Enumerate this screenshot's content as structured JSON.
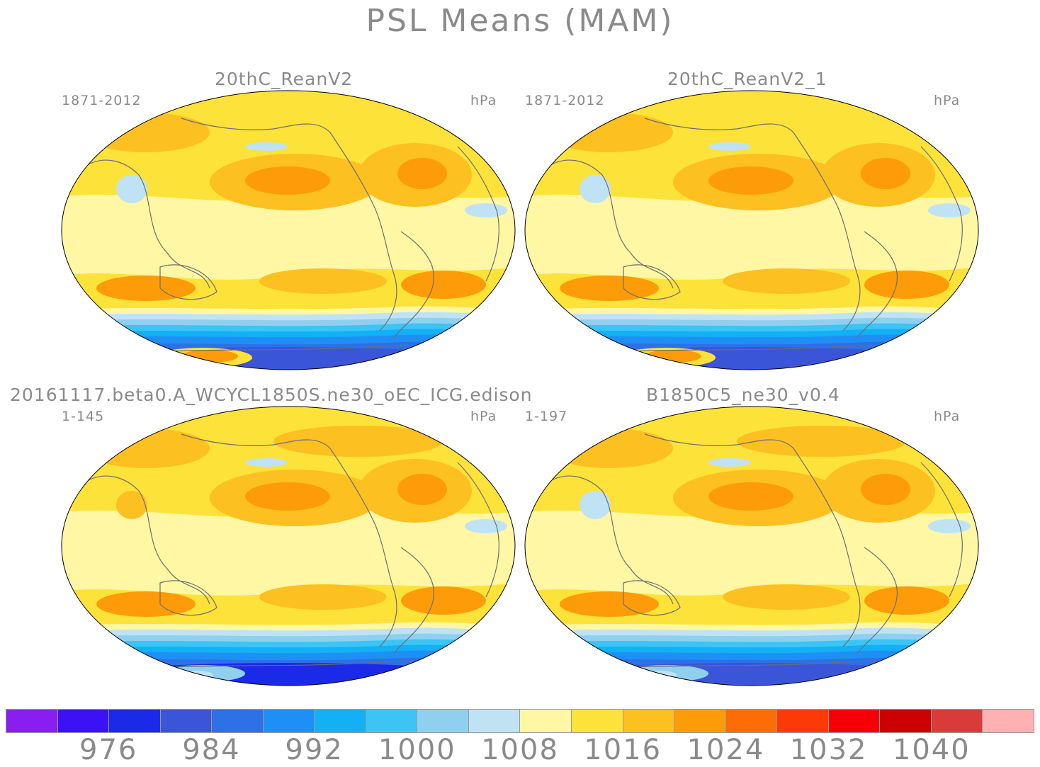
{
  "title": "PSL Means (MAM)",
  "panels": [
    {
      "title": "20thC_ReanV2",
      "years": "1871-2012",
      "units": "hPa",
      "variant": "obs"
    },
    {
      "title": "20thC_ReanV2_1",
      "years": "1871-2012",
      "units": "hPa",
      "variant": "obs"
    },
    {
      "title": "20161117.beta0.A_WCYCL1850S.ne30_oEC_ICG.edison",
      "years": "1-145",
      "units": "hPa",
      "variant": "model1"
    },
    {
      "title": "B1850C5_ne30_v0.4",
      "years": "1-197",
      "units": "hPa",
      "variant": "model2"
    }
  ],
  "colorbar": {
    "colors": [
      "#8a1df0",
      "#3a12f5",
      "#1a2ae8",
      "#3a55d8",
      "#2e70e6",
      "#1e8ff5",
      "#12b0f5",
      "#3cc4f5",
      "#8fd0ee",
      "#bfe3f5",
      "#fff7a3",
      "#fde23a",
      "#fcc020",
      "#fd9c08",
      "#fd6c05",
      "#fc3a08",
      "#f50006",
      "#cc0000",
      "#d93b3b",
      "#ffb1b1"
    ],
    "tick_labels": [
      "976",
      "984",
      "992",
      "1000",
      "1008",
      "1016",
      "1024",
      "1032",
      "1040"
    ]
  }
}
